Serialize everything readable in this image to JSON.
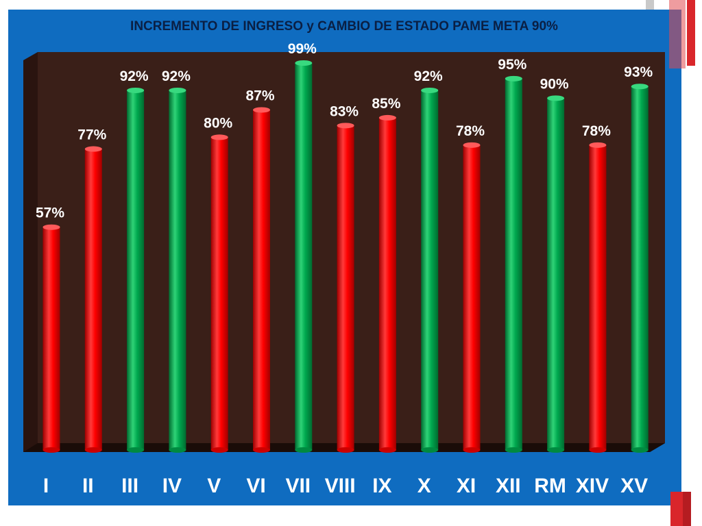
{
  "chart_data": {
    "type": "bar",
    "title": "INCREMENTO DE INGRESO y CAMBIO DE ESTADO PAME META 90%",
    "categories": [
      "I",
      "II",
      "III",
      "IV",
      "V",
      "VI",
      "VII",
      "VIII",
      "IX",
      "X",
      "XI",
      "XII",
      "RM",
      "XIV",
      "XV"
    ],
    "values": [
      57,
      77,
      92,
      92,
      80,
      87,
      99,
      83,
      85,
      92,
      78,
      95,
      90,
      78,
      93
    ],
    "labels": [
      "57%",
      "77%",
      "92%",
      "92%",
      "80%",
      "87%",
      "99%",
      "83%",
      "85%",
      "92%",
      "78%",
      "95%",
      "90%",
      "78%",
      "93%"
    ],
    "ylim": [
      0,
      100
    ],
    "goal": 90,
    "colors": {
      "below_goal": "#ff0000",
      "at_or_above_goal": "#00a84f",
      "plot_bg": "#3a1f18",
      "frame": "#0f6cc0"
    },
    "grid": false
  }
}
